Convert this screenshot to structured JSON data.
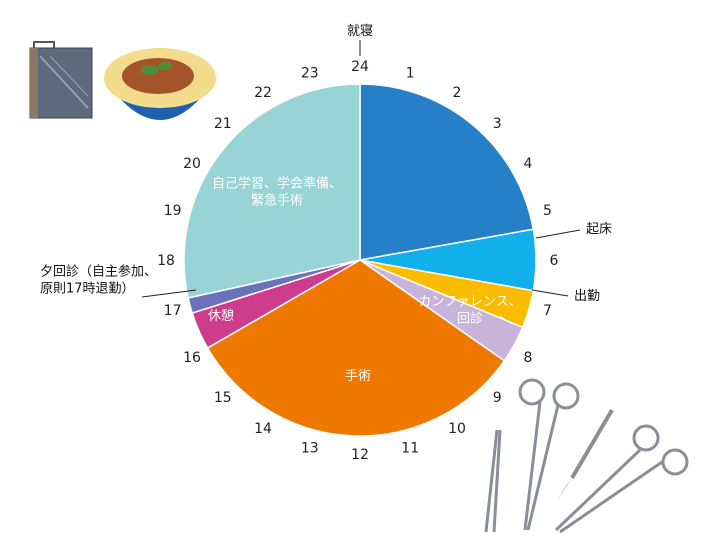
{
  "chart_data": {
    "type": "pie",
    "unit": "hours",
    "hour_labels": [
      "24",
      "1",
      "2",
      "3",
      "4",
      "5",
      "6",
      "7",
      "8",
      "9",
      "10",
      "11",
      "12",
      "13",
      "14",
      "15",
      "16",
      "17",
      "18",
      "19",
      "20",
      "21",
      "22",
      "23"
    ],
    "slices": [
      {
        "label": "",
        "lines": [],
        "start": 0,
        "end": 5.33,
        "color": "#2680c8"
      },
      {
        "label": "起床",
        "lines": [
          "起床"
        ],
        "start": 5.33,
        "end": 6.67,
        "color": "#12b0ea"
      },
      {
        "label": "出勤",
        "lines": [
          "出勤"
        ],
        "start": 6.67,
        "end": 7.5,
        "color": "#fbbc00"
      },
      {
        "label": "カンファレンス、回診",
        "lines": [
          "カンファレンス、",
          "回診"
        ],
        "start": 7.5,
        "end": 8.33,
        "color": "#c8b4d9"
      },
      {
        "label": "手術",
        "lines": [
          "手術"
        ],
        "start": 8.33,
        "end": 16,
        "color": "#ef7800"
      },
      {
        "label": "休憩",
        "lines": [
          "休憩"
        ],
        "start": 16,
        "end": 16.83,
        "color": "#cf3c8e"
      },
      {
        "label": "夕回診（自主参加、原則17時退勤）",
        "lines": [
          "夕回診（自主参加、",
          "原則17時退勤）"
        ],
        "start": 16.83,
        "end": 17.17,
        "color": "#6b72bb"
      },
      {
        "label": "自己学習、学会準備、緊急手術",
        "lines": [
          "自己学習、学会準備、",
          "緊急手術"
        ],
        "start": 17.17,
        "end": 24,
        "color": "#98d3d6"
      }
    ],
    "annotations": [
      {
        "label": "就寝",
        "at_hour": 24
      }
    ]
  },
  "icons": [
    "lunchbox-icon",
    "katsudon-bowl-icon",
    "surgical-instruments-icon"
  ]
}
